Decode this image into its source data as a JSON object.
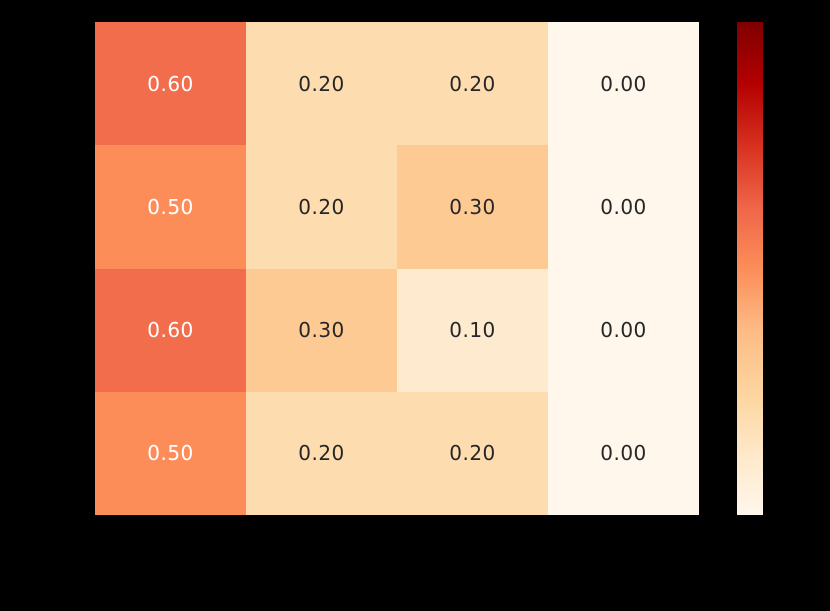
{
  "chart_data": {
    "type": "heatmap",
    "rows": 4,
    "cols": 4,
    "values": [
      [
        0.6,
        0.2,
        0.2,
        0.0
      ],
      [
        0.5,
        0.2,
        0.3,
        0.0
      ],
      [
        0.6,
        0.3,
        0.1,
        0.0
      ],
      [
        0.5,
        0.2,
        0.2,
        0.0
      ]
    ],
    "cell_labels": [
      [
        "0.60",
        "0.20",
        "0.20",
        "0.00"
      ],
      [
        "0.50",
        "0.20",
        "0.30",
        "0.00"
      ],
      [
        "0.60",
        "0.30",
        "0.10",
        "0.00"
      ],
      [
        "0.50",
        "0.20",
        "0.20",
        "0.00"
      ]
    ],
    "title": "",
    "xlabel": "",
    "ylabel": "",
    "x_tick_labels": [],
    "y_tick_labels": [],
    "grid": false,
    "legend_position": "right-colorbar",
    "colorbar": {
      "vmin": 0.0,
      "vmax": 1.0,
      "tick_count": 6,
      "orientation": "vertical"
    },
    "colors": {
      "background": "#000000",
      "colormap_stops_low_to_high": [
        "#fff7ec",
        "#fee8c8",
        "#fdd49e",
        "#fdbb84",
        "#fc8d59",
        "#ef6548",
        "#d7301f",
        "#b30000",
        "#7f0000"
      ],
      "annotation_dark_text": "#262626",
      "annotation_light_text": "#ffffff",
      "tick_color": "#000000"
    }
  }
}
